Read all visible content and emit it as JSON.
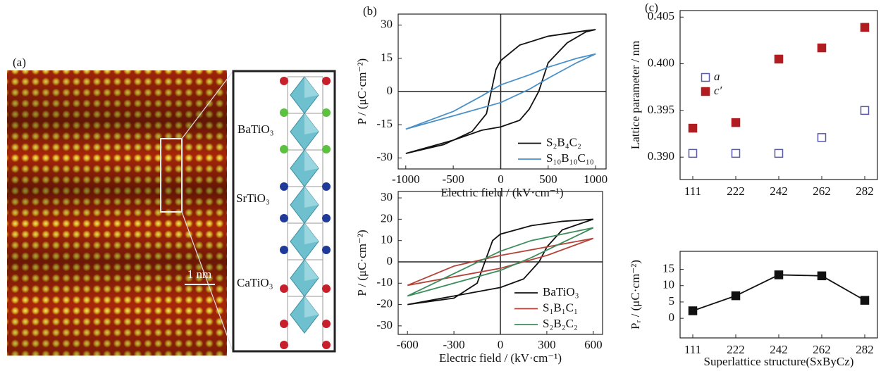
{
  "panel_a": {
    "label": "(a)",
    "layers": [
      "BaTiO₃",
      "SrTiO₃",
      "CaTiO₃"
    ],
    "scale_bar": "1 nm"
  },
  "chart_data": [
    {
      "type": "line",
      "panel_label": "(b)",
      "x_label": "Electric field / (kV·cm⁻¹)",
      "y_label": "P / (μC·cm⁻²)",
      "xlim": [
        -1080,
        1110
      ],
      "ylim": [
        -35,
        35
      ],
      "xticks": [
        -1000,
        -500,
        0,
        500,
        1000
      ],
      "yticks": [
        -30,
        -15,
        0,
        15,
        30
      ],
      "zero_lines": true,
      "legend": "lower right",
      "series": [
        {
          "name": "S₂B₄C₂",
          "color": "#111111",
          "x": [
            -1000,
            -500,
            -200,
            0,
            200,
            300,
            400,
            500,
            700,
            900,
            1000,
            900,
            500,
            200,
            0,
            -50,
            -100,
            -150,
            -300,
            -600,
            -1000
          ],
          "values": [
            -28,
            -22,
            -17.5,
            -16,
            -13,
            -8,
            0,
            13,
            22,
            27,
            28,
            27.5,
            25,
            21,
            14,
            10,
            0,
            -10,
            -18,
            -24,
            -28
          ]
        },
        {
          "name": "S₁₀B₁₀C₁₀",
          "color": "#4a90c8",
          "x": [
            -1000,
            -500,
            0,
            300,
            500,
            800,
            1000,
            800,
            500,
            300,
            0,
            -200,
            -500,
            -1000
          ],
          "values": [
            -17,
            -11,
            -5,
            1,
            6,
            13,
            17,
            15,
            11,
            7.5,
            3,
            -2,
            -9,
            -17
          ]
        }
      ]
    },
    {
      "type": "line",
      "x_label": "Electric field / (kV·cm⁻¹)",
      "y_label": "P / (μC·cm⁻²)",
      "xlim": [
        -660,
        660
      ],
      "ylim": [
        -34,
        33
      ],
      "xticks": [
        -600,
        -300,
        0,
        300,
        600
      ],
      "yticks": [
        -30,
        -20,
        -10,
        0,
        10,
        20,
        30
      ],
      "zero_lines": true,
      "legend": "lower right",
      "series": [
        {
          "name": "BaTiO₃",
          "color": "#111111",
          "x": [
            -600,
            -300,
            0,
            150,
            250,
            300,
            400,
            600,
            400,
            200,
            0,
            -50,
            -100,
            -150,
            -300,
            -600
          ],
          "values": [
            -20,
            -16,
            -12,
            -8,
            0,
            7,
            15,
            20,
            19,
            17,
            13,
            10,
            0,
            -10,
            -17,
            -20
          ]
        },
        {
          "name": "S₁B₁C₁",
          "color": "#b5443a",
          "x": [
            -600,
            -300,
            0,
            300,
            600,
            300,
            0,
            -300,
            -600
          ],
          "values": [
            -11,
            -7,
            -3,
            3,
            11,
            7,
            3,
            -2,
            -11
          ]
        },
        {
          "name": "S₂B₂C₂",
          "color": "#3d8c5c",
          "x": [
            -600,
            -300,
            0,
            200,
            400,
            600,
            400,
            200,
            0,
            -200,
            -400,
            -600
          ],
          "values": [
            -16,
            -10,
            -4,
            2,
            9,
            16,
            13,
            10,
            5,
            -2,
            -9,
            -16
          ]
        }
      ]
    },
    {
      "type": "scatter",
      "panel_label": "(c)",
      "y_label": "Lattice parameter / nm",
      "categories": [
        "111",
        "222",
        "242",
        "262",
        "282"
      ],
      "ylim": [
        0.3876,
        0.4057
      ],
      "yticks": [
        {
          "value": 0.39,
          "label": "0.390"
        },
        0.395,
        {
          "value": 0.4,
          "label": "0.400"
        },
        0.405
      ],
      "legend": "center left",
      "series": [
        {
          "name": "a",
          "color": "#5a5aa8",
          "marker": "open-square",
          "values": [
            0.3904,
            0.3904,
            0.3904,
            0.3921,
            0.395
          ]
        },
        {
          "name": "c′",
          "color": "#b01c20",
          "marker": "square",
          "values": [
            0.3931,
            0.3937,
            0.4005,
            0.4017,
            0.4039
          ]
        }
      ]
    },
    {
      "type": "line",
      "x_label": "Superlattice structure(SxByCz)",
      "y_label": "Pᵣ / (μC·cm⁻²)",
      "categories": [
        "111",
        "222",
        "242",
        "262",
        "282"
      ],
      "ylim": [
        -6,
        20.5
      ],
      "yticks": [
        0,
        5,
        10,
        15
      ],
      "markers": true,
      "series": [
        {
          "color": "#111111",
          "values": [
            2.3,
            6.9,
            13.3,
            13.0,
            5.5
          ]
        }
      ]
    }
  ]
}
